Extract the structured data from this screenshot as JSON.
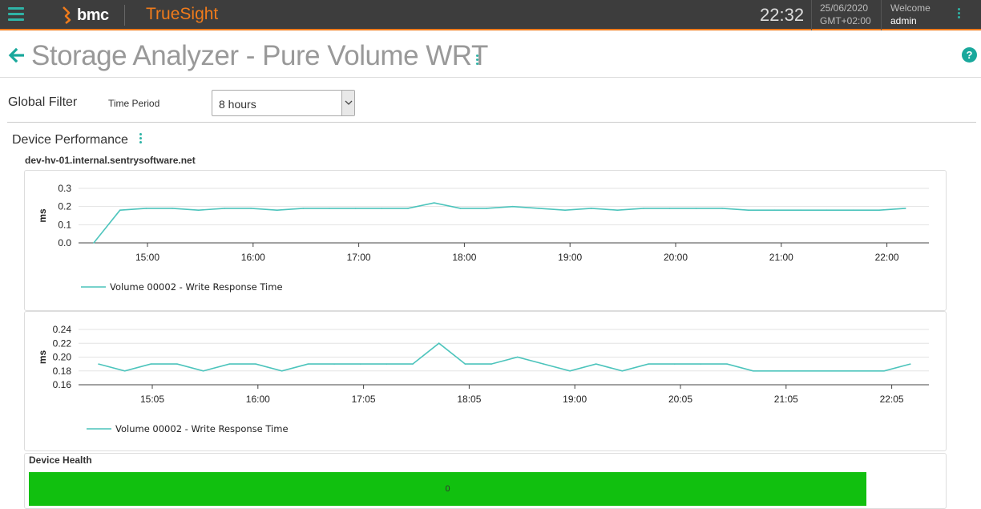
{
  "topbar": {
    "brand": "bmc",
    "product": "TrueSight",
    "time": "22:32",
    "date": "25/06/2020",
    "timezone": "GMT+02:00",
    "welcome": "Welcome",
    "user": "admin",
    "accent": "#f07b1b",
    "teal": "#2fb3a6"
  },
  "header": {
    "title": "Storage Analyzer - Pure Volume WRT",
    "help": "?"
  },
  "filter": {
    "label": "Global Filter",
    "time_period_label": "Time Period",
    "time_period_value": "8 hours"
  },
  "section": {
    "title": "Device Performance",
    "device": "dev-hv-01.internal.sentrysoftware.net"
  },
  "health": {
    "title": "Device Health",
    "value": "0",
    "color": "#11c00f"
  },
  "chart_data": [
    {
      "type": "line",
      "ylabel": "ms",
      "ylim": [
        0.0,
        0.3
      ],
      "yticks": [
        "0.0",
        "0.1",
        "0.2",
        "0.3"
      ],
      "xticks": [
        "15:00",
        "16:00",
        "17:00",
        "18:00",
        "19:00",
        "20:00",
        "21:00",
        "22:00"
      ],
      "grid": true,
      "legend": "bottom-left",
      "series": [
        {
          "name": "Volume 00002 - Write Response Time",
          "color": "#4cc4bc",
          "x": [
            "14:30",
            "14:45",
            "15:00",
            "15:15",
            "15:30",
            "15:45",
            "16:00",
            "16:15",
            "16:30",
            "16:45",
            "17:00",
            "17:15",
            "17:30",
            "17:45",
            "18:00",
            "18:15",
            "18:30",
            "18:45",
            "19:00",
            "19:15",
            "19:30",
            "19:45",
            "20:00",
            "20:15",
            "20:30",
            "20:45",
            "21:00",
            "21:15",
            "21:30",
            "21:45",
            "22:00",
            "22:15"
          ],
          "values": [
            0.0,
            0.18,
            0.19,
            0.19,
            0.18,
            0.19,
            0.19,
            0.18,
            0.19,
            0.19,
            0.19,
            0.19,
            0.19,
            0.22,
            0.19,
            0.19,
            0.2,
            0.19,
            0.18,
            0.19,
            0.18,
            0.19,
            0.19,
            0.19,
            0.19,
            0.18,
            0.18,
            0.18,
            0.18,
            0.18,
            0.18,
            0.19
          ]
        }
      ]
    },
    {
      "type": "line",
      "ylabel": "ms",
      "ylim": [
        0.16,
        0.24
      ],
      "yticks": [
        "0.16",
        "0.18",
        "0.20",
        "0.22",
        "0.24"
      ],
      "xticks": [
        "15:05",
        "16:00",
        "17:05",
        "18:05",
        "19:00",
        "20:05",
        "21:05",
        "22:05"
      ],
      "grid": true,
      "legend": "bottom-left",
      "series": [
        {
          "name": "Volume 00002 - Write Response Time",
          "color": "#4cc4bc",
          "values": [
            0.19,
            0.18,
            0.19,
            0.19,
            0.18,
            0.19,
            0.19,
            0.18,
            0.19,
            0.19,
            0.19,
            0.19,
            0.19,
            0.22,
            0.19,
            0.19,
            0.2,
            0.19,
            0.18,
            0.19,
            0.18,
            0.19,
            0.19,
            0.19,
            0.19,
            0.18,
            0.18,
            0.18,
            0.18,
            0.18,
            0.18,
            0.19
          ]
        }
      ]
    }
  ]
}
